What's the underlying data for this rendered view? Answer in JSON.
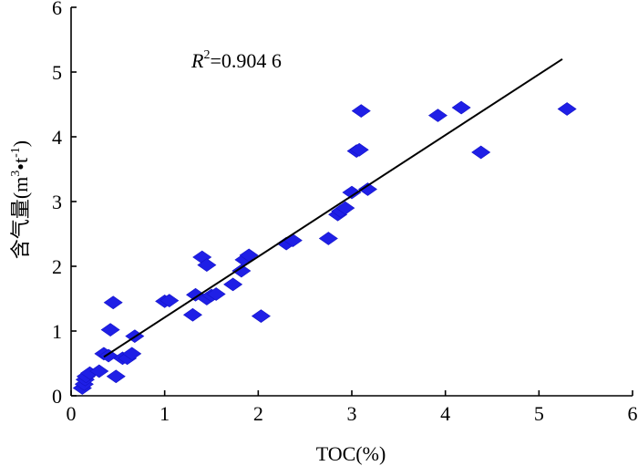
{
  "chart_data": {
    "type": "scatter",
    "xlabel": "TOC(%)",
    "ylabel": "含气量(m³•t⁻¹)",
    "ylabel_parts": {
      "base": "含气量(m",
      "sup1": "3",
      "mid": "•t",
      "sup2": "-1",
      "tail": ")"
    },
    "xlim": [
      0,
      6
    ],
    "ylim": [
      0,
      6
    ],
    "xticks": [
      0,
      1,
      2,
      3,
      4,
      5,
      6
    ],
    "yticks": [
      0,
      1,
      2,
      3,
      4,
      5,
      6
    ],
    "annotation": {
      "var": "R",
      "sup": "2",
      "text": "=0.904 6"
    },
    "marker_color": "#1f1fe6",
    "points": [
      {
        "x": 0.12,
        "y": 0.12
      },
      {
        "x": 0.14,
        "y": 0.18
      },
      {
        "x": 0.15,
        "y": 0.25
      },
      {
        "x": 0.16,
        "y": 0.3
      },
      {
        "x": 0.2,
        "y": 0.35
      },
      {
        "x": 0.3,
        "y": 0.38
      },
      {
        "x": 0.35,
        "y": 0.65
      },
      {
        "x": 0.4,
        "y": 0.62
      },
      {
        "x": 0.42,
        "y": 1.02
      },
      {
        "x": 0.45,
        "y": 1.44
      },
      {
        "x": 0.48,
        "y": 0.3
      },
      {
        "x": 0.55,
        "y": 0.58
      },
      {
        "x": 0.6,
        "y": 0.58
      },
      {
        "x": 0.65,
        "y": 0.65
      },
      {
        "x": 0.68,
        "y": 0.92
      },
      {
        "x": 1.0,
        "y": 1.46
      },
      {
        "x": 1.05,
        "y": 1.47
      },
      {
        "x": 1.3,
        "y": 1.25
      },
      {
        "x": 1.33,
        "y": 1.56
      },
      {
        "x": 1.4,
        "y": 2.14
      },
      {
        "x": 1.45,
        "y": 2.02
      },
      {
        "x": 1.45,
        "y": 1.5
      },
      {
        "x": 1.5,
        "y": 1.55
      },
      {
        "x": 1.55,
        "y": 1.57
      },
      {
        "x": 1.73,
        "y": 1.72
      },
      {
        "x": 1.82,
        "y": 1.93
      },
      {
        "x": 1.85,
        "y": 2.1
      },
      {
        "x": 1.9,
        "y": 2.17
      },
      {
        "x": 2.03,
        "y": 1.23
      },
      {
        "x": 2.3,
        "y": 2.35
      },
      {
        "x": 2.37,
        "y": 2.4
      },
      {
        "x": 2.75,
        "y": 2.43
      },
      {
        "x": 2.85,
        "y": 2.8
      },
      {
        "x": 2.88,
        "y": 2.85
      },
      {
        "x": 2.93,
        "y": 2.9
      },
      {
        "x": 3.0,
        "y": 3.14
      },
      {
        "x": 3.05,
        "y": 3.78
      },
      {
        "x": 3.08,
        "y": 3.8
      },
      {
        "x": 3.1,
        "y": 4.4
      },
      {
        "x": 3.17,
        "y": 3.19
      },
      {
        "x": 3.92,
        "y": 4.33
      },
      {
        "x": 4.17,
        "y": 4.45
      },
      {
        "x": 4.38,
        "y": 3.76
      },
      {
        "x": 5.3,
        "y": 4.43
      }
    ],
    "fit_line": {
      "x1": 0.35,
      "y1": 0.6,
      "x2": 5.25,
      "y2": 5.2
    }
  }
}
